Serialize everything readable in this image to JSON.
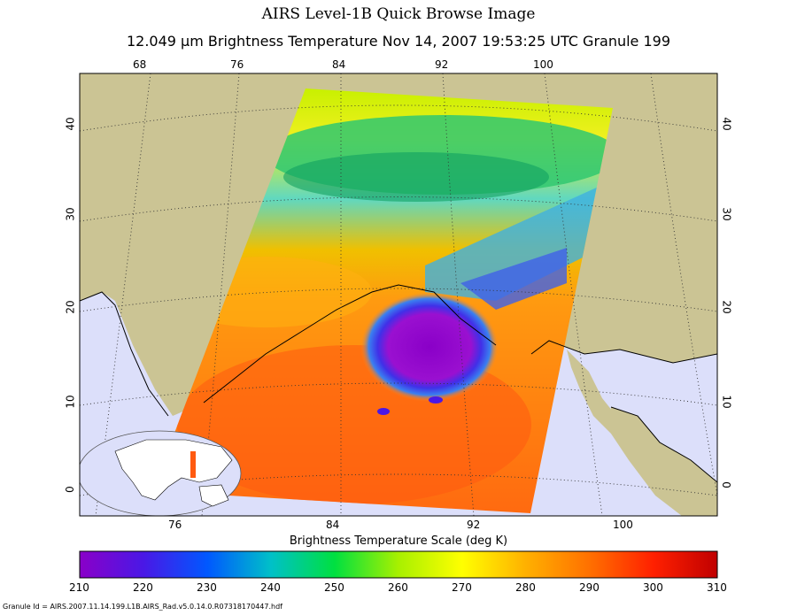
{
  "title": "AIRS Level-1B Quick Browse Image",
  "subtitle": "12.049 μm Brightness Temperature   Nov 14, 2007 19:53:25 UTC  Granule 199",
  "map": {
    "top_lon_labels": [
      "68",
      "76",
      "84",
      "92",
      "100"
    ],
    "bottom_lon_labels": [
      "76",
      "84",
      "92",
      "100"
    ],
    "left_lat_labels": [
      "40",
      "30",
      "20",
      "10",
      "0"
    ],
    "right_lat_labels": [
      "40",
      "30",
      "20",
      "10",
      "0"
    ],
    "land_color": "#cbc494",
    "ocean_color": "#dcdffa",
    "storm_core_color": "#8a00c8"
  },
  "colorbar": {
    "title": "Brightness Temperature Scale (deg K)",
    "ticks": [
      "210",
      "220",
      "230",
      "240",
      "250",
      "260",
      "270",
      "280",
      "290",
      "300",
      "310"
    ],
    "range": [
      210,
      310
    ],
    "stops": [
      "#8a00c8",
      "#4a18e6",
      "#0058ff",
      "#00c0c8",
      "#00e040",
      "#a8f000",
      "#ffff00",
      "#ffb000",
      "#ff7000",
      "#ff2000",
      "#c00000"
    ]
  },
  "footer": {
    "granule_id": "Granule Id = AIRS.2007.11.14.199.L1B.AIRS_Rad.v5.0.14.0.R07318170447.hdf"
  }
}
